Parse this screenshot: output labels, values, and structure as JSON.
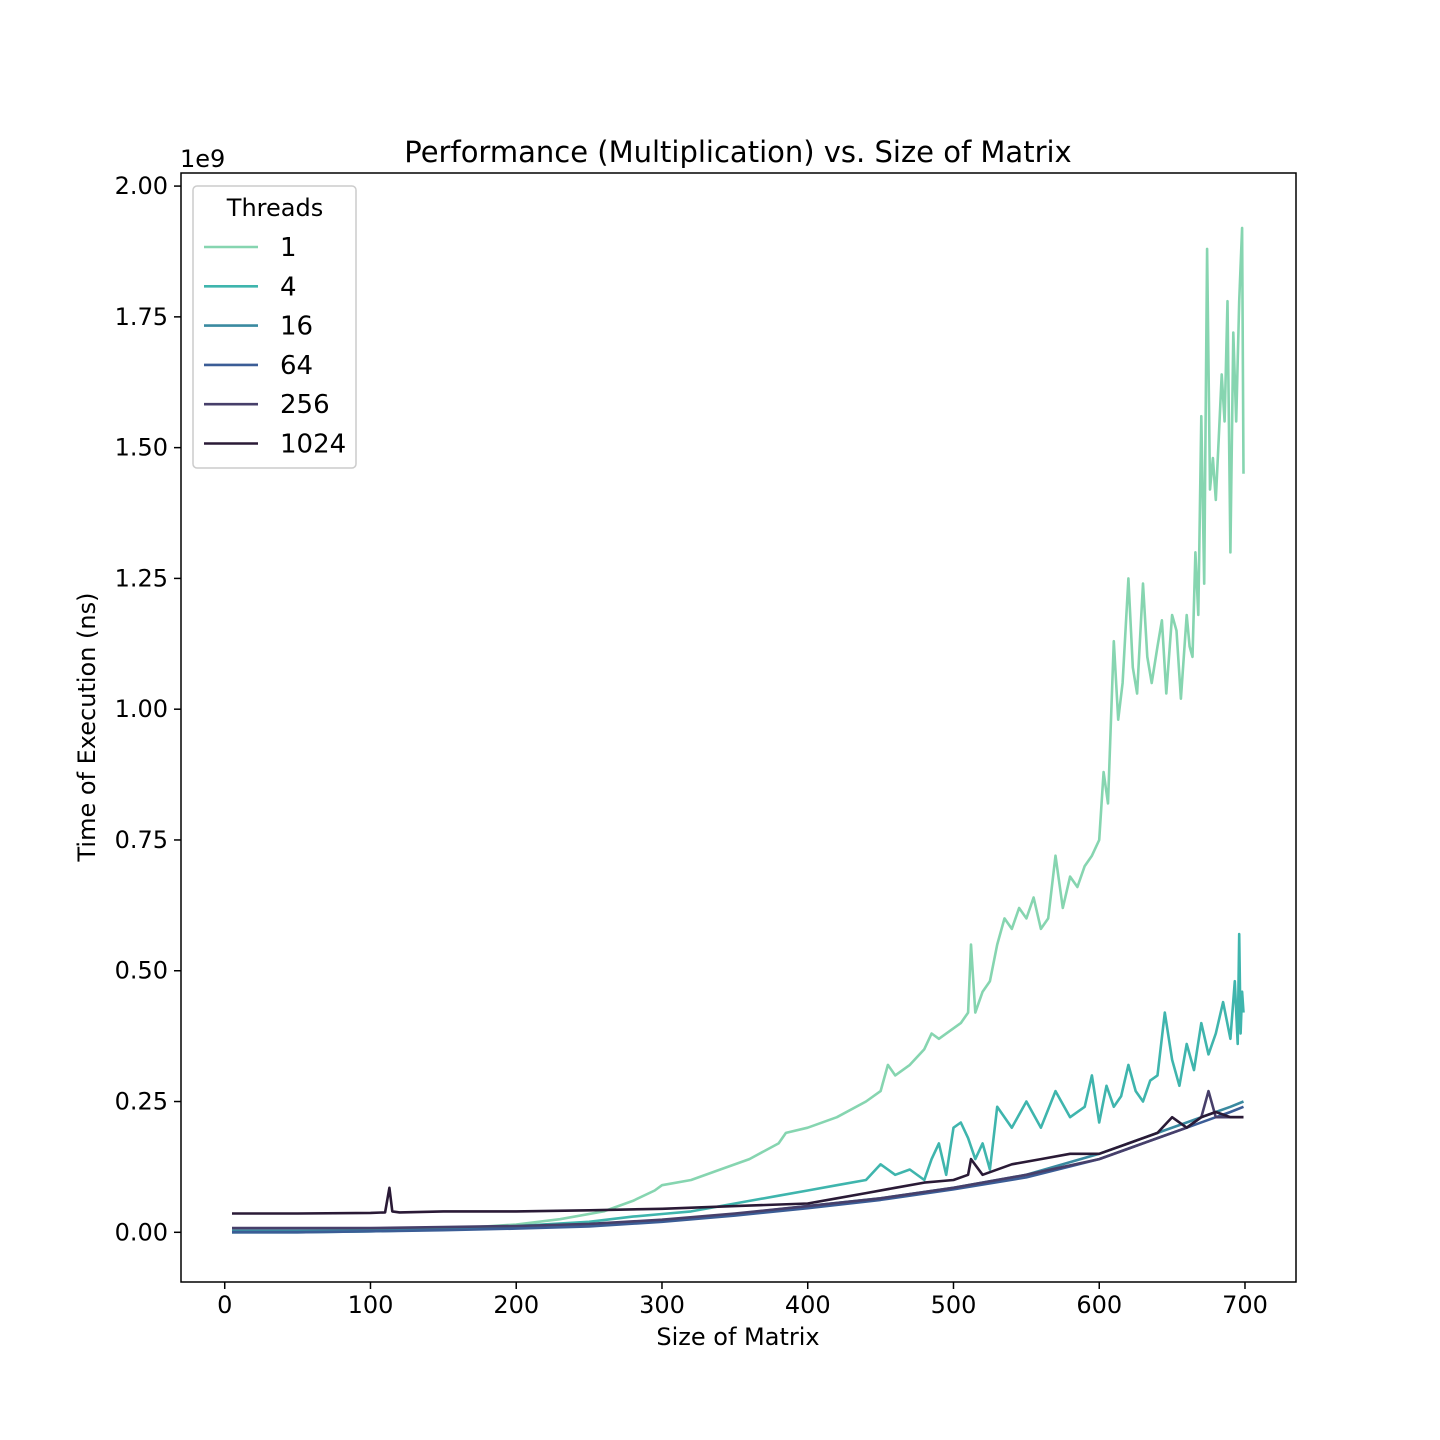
{
  "chart_data": {
    "type": "line",
    "title": "Performance (Multiplication) vs. Size of Matrix",
    "xlabel": "Size of Matrix",
    "ylabel": "Time of Execution (ns)",
    "y_offset_label": "1e9",
    "y_scale": 1000000000,
    "xlim": [
      -30,
      735
    ],
    "ylim": [
      -0.095,
      2.025
    ],
    "x_ticks": [
      0,
      100,
      200,
      300,
      400,
      500,
      600,
      700
    ],
    "x_tick_labels": [
      "0",
      "100",
      "200",
      "300",
      "400",
      "500",
      "600",
      "700"
    ],
    "y_ticks": [
      0,
      0.25,
      0.5,
      0.75,
      1.0,
      1.25,
      1.5,
      1.75,
      2.0
    ],
    "y_tick_labels": [
      "0.00",
      "0.25",
      "0.50",
      "0.75",
      "1.00",
      "1.25",
      "1.50",
      "1.75",
      "2.00"
    ],
    "grid": false,
    "legend": {
      "title": "Threads",
      "position": "top-left"
    },
    "series": [
      {
        "name": "1",
        "color": "#86d5b0",
        "x": [
          5,
          50,
          100,
          150,
          200,
          230,
          260,
          280,
          295,
          300,
          320,
          340,
          360,
          380,
          385,
          400,
          420,
          440,
          450,
          455,
          460,
          470,
          480,
          485,
          490,
          500,
          505,
          510,
          512,
          515,
          520,
          525,
          530,
          535,
          540,
          545,
          550,
          555,
          560,
          565,
          570,
          575,
          580,
          585,
          590,
          595,
          600,
          603,
          606,
          610,
          613,
          616,
          620,
          623,
          626,
          630,
          633,
          636,
          640,
          643,
          646,
          650,
          653,
          656,
          660,
          662,
          664,
          666,
          668,
          670,
          672,
          674,
          676,
          678,
          680,
          682,
          684,
          686,
          688,
          690,
          692,
          694,
          696,
          698,
          699
        ],
        "y": [
          0.0,
          0.001,
          0.003,
          0.006,
          0.015,
          0.025,
          0.04,
          0.06,
          0.08,
          0.09,
          0.1,
          0.12,
          0.14,
          0.17,
          0.19,
          0.2,
          0.22,
          0.25,
          0.27,
          0.32,
          0.3,
          0.32,
          0.35,
          0.38,
          0.37,
          0.39,
          0.4,
          0.42,
          0.55,
          0.42,
          0.46,
          0.48,
          0.55,
          0.6,
          0.58,
          0.62,
          0.6,
          0.64,
          0.58,
          0.6,
          0.72,
          0.62,
          0.68,
          0.66,
          0.7,
          0.72,
          0.75,
          0.88,
          0.82,
          1.13,
          0.98,
          1.05,
          1.25,
          1.08,
          1.03,
          1.24,
          1.1,
          1.05,
          1.12,
          1.17,
          1.03,
          1.18,
          1.15,
          1.02,
          1.18,
          1.12,
          1.1,
          1.3,
          1.18,
          1.56,
          1.24,
          1.88,
          1.42,
          1.48,
          1.4,
          1.52,
          1.64,
          1.55,
          1.78,
          1.3,
          1.72,
          1.55,
          1.78,
          1.92,
          1.45
        ]
      },
      {
        "name": "4",
        "color": "#3fb5ad",
        "x": [
          5,
          50,
          100,
          150,
          200,
          250,
          280,
          300,
          320,
          340,
          360,
          380,
          400,
          420,
          440,
          450,
          460,
          470,
          480,
          485,
          490,
          495,
          500,
          505,
          510,
          515,
          520,
          525,
          530,
          540,
          550,
          560,
          570,
          580,
          590,
          595,
          600,
          605,
          610,
          615,
          620,
          625,
          630,
          635,
          640,
          645,
          650,
          655,
          660,
          665,
          670,
          675,
          680,
          685,
          690,
          693,
          695,
          696,
          697,
          698,
          699
        ],
        "y": [
          0.0,
          0.0,
          0.002,
          0.005,
          0.012,
          0.02,
          0.03,
          0.035,
          0.04,
          0.05,
          0.06,
          0.07,
          0.08,
          0.09,
          0.1,
          0.13,
          0.11,
          0.12,
          0.1,
          0.14,
          0.17,
          0.11,
          0.2,
          0.21,
          0.18,
          0.14,
          0.17,
          0.12,
          0.24,
          0.2,
          0.25,
          0.2,
          0.27,
          0.22,
          0.24,
          0.3,
          0.21,
          0.28,
          0.24,
          0.26,
          0.32,
          0.27,
          0.25,
          0.29,
          0.3,
          0.42,
          0.33,
          0.28,
          0.36,
          0.31,
          0.4,
          0.34,
          0.38,
          0.44,
          0.37,
          0.48,
          0.36,
          0.57,
          0.38,
          0.46,
          0.42
        ]
      },
      {
        "name": "16",
        "color": "#3a8aa0",
        "x": [
          5,
          50,
          100,
          150,
          200,
          250,
          300,
          350,
          400,
          450,
          500,
          550,
          600,
          620,
          640,
          660,
          680,
          690,
          699
        ],
        "y": [
          0.003,
          0.003,
          0.004,
          0.006,
          0.008,
          0.012,
          0.022,
          0.035,
          0.05,
          0.065,
          0.085,
          0.11,
          0.15,
          0.17,
          0.19,
          0.21,
          0.23,
          0.24,
          0.25
        ]
      },
      {
        "name": "64",
        "color": "#3b5d96",
        "x": [
          5,
          50,
          100,
          150,
          200,
          250,
          300,
          350,
          400,
          450,
          500,
          550,
          600,
          620,
          640,
          660,
          680,
          690,
          699
        ],
        "y": [
          0.0,
          0.0,
          0.002,
          0.004,
          0.007,
          0.011,
          0.02,
          0.032,
          0.046,
          0.062,
          0.082,
          0.105,
          0.14,
          0.16,
          0.18,
          0.2,
          0.22,
          0.23,
          0.24
        ]
      },
      {
        "name": "256",
        "color": "#473f6a",
        "x": [
          5,
          50,
          100,
          150,
          200,
          250,
          300,
          350,
          400,
          450,
          500,
          550,
          600,
          620,
          640,
          660,
          670,
          675,
          680,
          690,
          699
        ],
        "y": [
          0.008,
          0.008,
          0.008,
          0.01,
          0.012,
          0.016,
          0.024,
          0.036,
          0.05,
          0.065,
          0.085,
          0.11,
          0.14,
          0.16,
          0.18,
          0.2,
          0.22,
          0.27,
          0.22,
          0.22,
          0.22
        ]
      },
      {
        "name": "1024",
        "color": "#2a1a36",
        "x": [
          5,
          50,
          100,
          110,
          113,
          115,
          120,
          150,
          200,
          250,
          300,
          350,
          400,
          420,
          440,
          460,
          480,
          500,
          510,
          512,
          520,
          540,
          560,
          580,
          600,
          620,
          640,
          650,
          660,
          670,
          680,
          690,
          699
        ],
        "y": [
          0.036,
          0.036,
          0.037,
          0.038,
          0.085,
          0.04,
          0.038,
          0.04,
          0.04,
          0.042,
          0.045,
          0.05,
          0.055,
          0.065,
          0.075,
          0.085,
          0.095,
          0.1,
          0.11,
          0.14,
          0.11,
          0.13,
          0.14,
          0.15,
          0.15,
          0.17,
          0.19,
          0.22,
          0.2,
          0.22,
          0.23,
          0.22,
          0.22
        ]
      }
    ]
  }
}
